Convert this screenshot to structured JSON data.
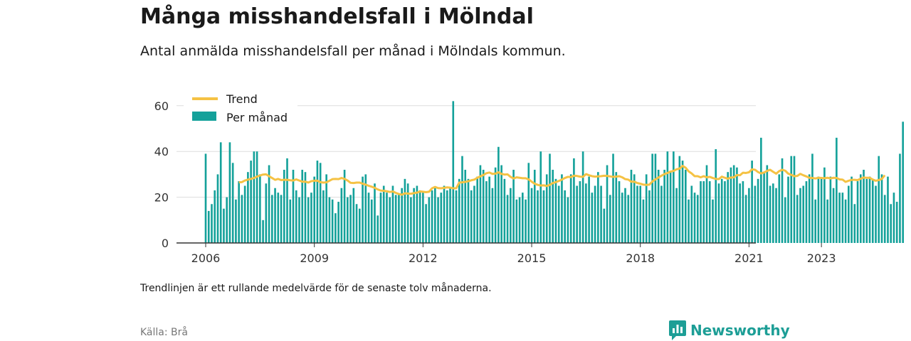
{
  "header": {
    "title": "Många misshandelsfall i Mölndal",
    "subtitle": "Antal anmälda misshandelsfall per månad i Mölndals kommun."
  },
  "footer": {
    "note": "Trendlinjen är ett rullande medelvärde för de senaste tolv månaderna.",
    "source": "Källa: Brå",
    "logo": "Newsworthy"
  },
  "colors": {
    "bar": "#14a19a",
    "trend": "#f5c244",
    "axis": "#333333",
    "grid": "#dddddd",
    "brand": "#1d9e96"
  },
  "chart_data": {
    "type": "bar",
    "title": "Många misshandelsfall i Mölndal",
    "subtitle": "Antal anmälda misshandelsfall per månad i Mölndals kommun.",
    "start": "2006-01",
    "ylim": [
      0,
      65
    ],
    "yticks": [
      0,
      20,
      40,
      60
    ],
    "xticks": [
      {
        "label": "2006",
        "index": 0
      },
      {
        "label": "2009",
        "index": 36
      },
      {
        "label": "2012",
        "index": 72
      },
      {
        "label": "2015",
        "index": 108
      },
      {
        "label": "2018",
        "index": 144
      },
      {
        "label": "2021",
        "index": 180
      },
      {
        "label": "2023",
        "index": 204
      }
    ],
    "grid": true,
    "legend_position": "top-left",
    "series": [
      {
        "name": "Per månad",
        "type": "bar",
        "values": [
          39,
          14,
          17,
          23,
          30,
          44,
          15,
          20,
          44,
          35,
          19,
          27,
          21,
          25,
          31,
          36,
          40,
          40,
          30,
          10,
          26,
          34,
          21,
          24,
          22,
          21,
          32,
          37,
          19,
          32,
          23,
          20,
          32,
          31,
          20,
          22,
          29,
          36,
          35,
          23,
          30,
          20,
          19,
          13,
          18,
          24,
          32,
          20,
          21,
          24,
          17,
          15,
          29,
          30,
          22,
          19,
          26,
          12,
          22,
          25,
          22,
          20,
          25,
          21,
          21,
          24,
          28,
          26,
          20,
          24,
          25,
          23,
          22,
          17,
          20,
          23,
          24,
          20,
          22,
          25,
          23,
          24,
          62,
          23,
          28,
          38,
          32,
          28,
          23,
          25,
          29,
          34,
          32,
          27,
          29,
          24,
          33,
          42,
          34,
          28,
          21,
          24,
          32,
          19,
          20,
          22,
          19,
          35,
          24,
          32,
          23,
          40,
          23,
          30,
          39,
          32,
          28,
          25,
          30,
          23,
          20,
          30,
          37,
          25,
          27,
          40,
          26,
          29,
          22,
          25,
          31,
          25,
          15,
          34,
          21,
          39,
          31,
          27,
          22,
          24,
          21,
          32,
          30,
          25,
          25,
          19,
          30,
          23,
          39,
          39,
          32,
          25,
          32,
          40,
          31,
          40,
          24,
          38,
          36,
          32,
          19,
          25,
          22,
          21,
          27,
          27,
          34,
          27,
          19,
          41,
          26,
          28,
          27,
          31,
          33,
          34,
          33,
          26,
          27,
          21,
          24,
          36,
          25,
          28,
          46,
          31,
          34,
          25,
          26,
          24,
          30,
          37,
          20,
          29,
          38,
          38,
          21,
          24,
          25,
          27,
          30,
          39,
          19,
          29,
          28,
          33,
          19,
          29,
          24,
          46,
          22,
          22,
          19,
          25,
          29,
          17,
          27,
          30,
          32,
          28,
          29,
          28,
          25,
          38,
          30,
          21,
          29,
          17,
          22,
          18,
          39,
          53
        ],
        "color": "#14a19a"
      },
      {
        "name": "Trend",
        "type": "line",
        "start_index": 11,
        "values": [
          26.5,
          26.6,
          27.3,
          27.7,
          28.0,
          28.4,
          29.0,
          29.5,
          29.9,
          30.0,
          29.2,
          28.4,
          27.6,
          28.0,
          27.5,
          27.6,
          27.6,
          27.4,
          27.3,
          27.8,
          27.3,
          26.8,
          26.8,
          26.4,
          27.0,
          27.2,
          27.2,
          26.6,
          26.4,
          26.5,
          27.2,
          27.9,
          28.0,
          27.9,
          28.4,
          28.0,
          27.3,
          26.3,
          26.2,
          26.4,
          26.4,
          25.9,
          25.5,
          25.0,
          24.6,
          24.1,
          23.4,
          22.9,
          22.8,
          22.6,
          22.3,
          22.5,
          21.9,
          21.4,
          21.1,
          21.7,
          21.6,
          21.5,
          21.8,
          22.0,
          22.5,
          22.4,
          22.2,
          22.4,
          23.9,
          24.5,
          24.0,
          23.9,
          24.1,
          24.3,
          24.2,
          23.9,
          23.9,
          26.4,
          26.5,
          26.7,
          27.0,
          27.4,
          27.7,
          28.5,
          29.1,
          29.7,
          30.5,
          30.8,
          30.2,
          30.3,
          30.9,
          30.2,
          29.9,
          30.0,
          28.9,
          28.2,
          28.7,
          28.5,
          28.3,
          28.3,
          27.8,
          26.8,
          25.9,
          25.4,
          25.1,
          25.2,
          24.9,
          25.4,
          26.2,
          26.6,
          27.1,
          27.7,
          28.4,
          28.9,
          28.8,
          29.4,
          29.3,
          29.0,
          28.9,
          30.1,
          29.6,
          29.2,
          29.0,
          29.1,
          29.2,
          29.4,
          29.3,
          29.1,
          28.9,
          29.0,
          29.2,
          28.7,
          27.9,
          27.7,
          26.8,
          26.8,
          26.2,
          25.9,
          25.5,
          25.4,
          25.5,
          26.9,
          27.8,
          28.6,
          29.4,
          30.1,
          30.6,
          31.2,
          31.5,
          32.2,
          32.5,
          33.7,
          32.9,
          31.3,
          30.4,
          29.2,
          29.2,
          28.7,
          29.2,
          28.7,
          28.9,
          28.4,
          28.0,
          27.9,
          29.0,
          28.5,
          28.1,
          28.6,
          28.7,
          29.7,
          29.6,
          30.7,
          30.6,
          30.9,
          32.2,
          32.0,
          31.0,
          30.4,
          30.8,
          31.5,
          32.0,
          31.1,
          30.3,
          31.4,
          32.0,
          31.6,
          30.3,
          29.8,
          29.2,
          29.3,
          30.2,
          29.6,
          29.1,
          28.5,
          28.4,
          28.2,
          28.5,
          28.4,
          28.3,
          28.5,
          28.2,
          28.5,
          28.4,
          27.8,
          27.7,
          26.7,
          27.2,
          27.6,
          27.6,
          27.5,
          28.1,
          28.6,
          28.5,
          28.5,
          27.7,
          27.2,
          27.5,
          28.0,
          29.6
        ],
        "color": "#f5c244"
      }
    ]
  }
}
